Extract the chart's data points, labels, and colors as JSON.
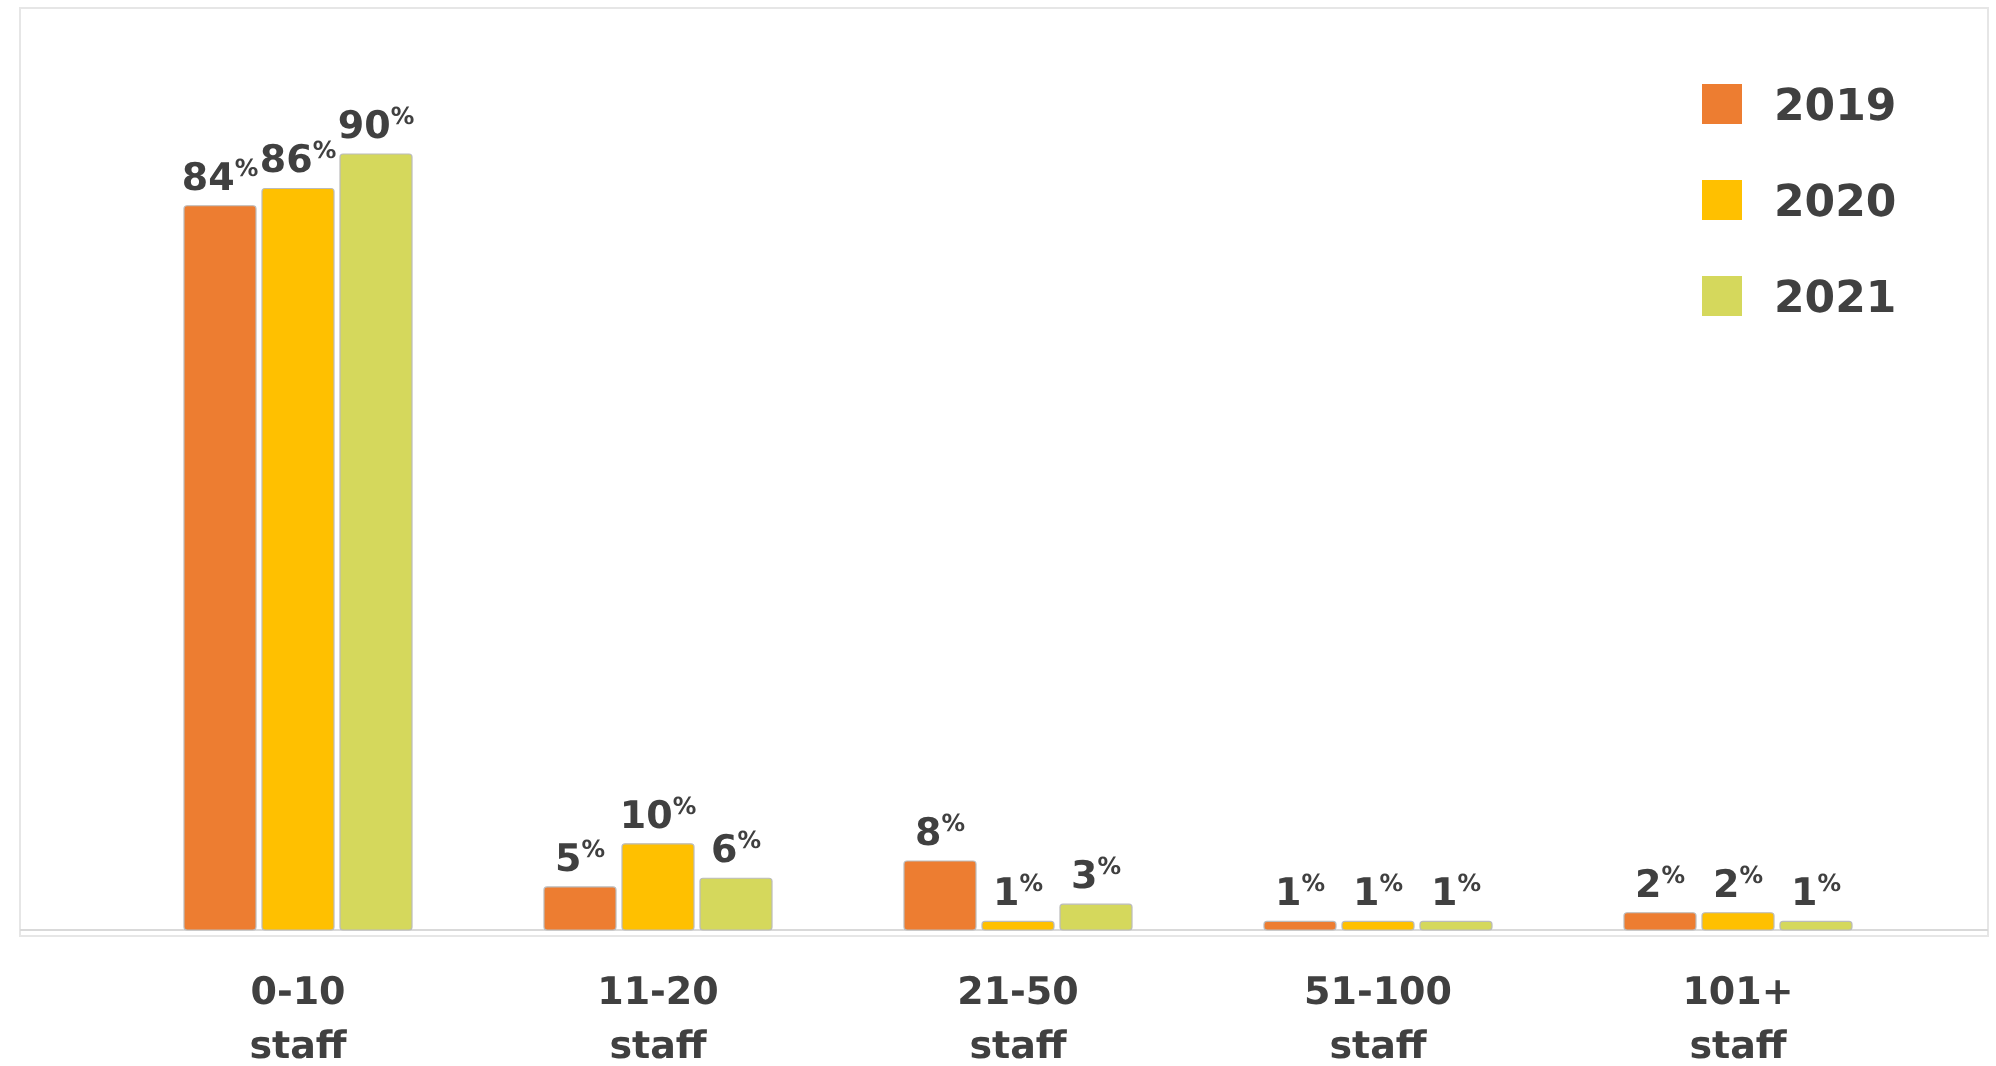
{
  "chart_data": {
    "type": "bar",
    "categories": [
      "0-10 staff",
      "11-20 staff",
      "21-50 staff",
      "51-100 staff",
      "101+ staff"
    ],
    "series": [
      {
        "name": "2019",
        "color": "#ed7d31",
        "values": [
          84,
          5,
          8,
          1,
          2
        ],
        "value_labels": [
          "84$^{%}$",
          "5$^{%}$",
          "8$^{%}$",
          "1$^{%}$",
          "2$^{%}$"
        ]
      },
      {
        "name": "2020",
        "color": "#ffc000",
        "values": [
          86,
          10,
          1,
          1,
          2
        ],
        "value_labels": [
          "86$^{%}$",
          "10$^{%}$",
          "1$^{%}$",
          "1$^{%}$",
          "2$^{%}$"
        ]
      },
      {
        "name": "2021",
        "color": "#d5d85c",
        "values": [
          90,
          6,
          3,
          1,
          1
        ],
        "value_labels": [
          "90$^{%}$",
          "6$^{%}$",
          "3$^{%}$",
          "1$^{%}$",
          "1$^{%}$"
        ]
      }
    ],
    "legend": "top right"
  }
}
